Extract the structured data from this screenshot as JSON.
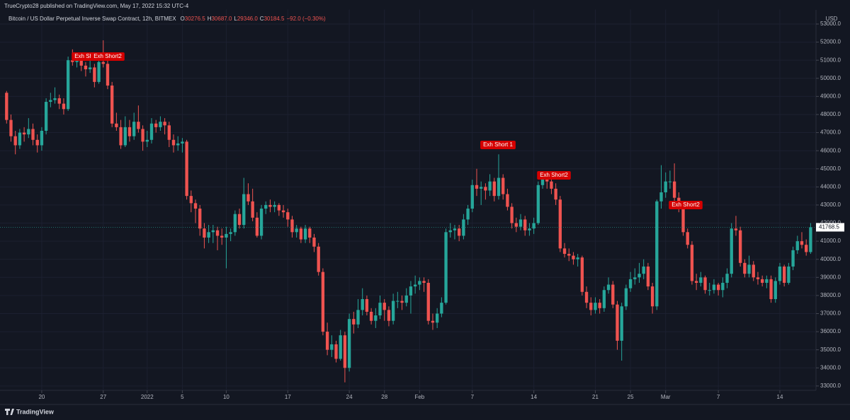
{
  "header": "TrueCrypto28 published on TradingView.com, May 17, 2022 15:32 UTC-4",
  "footer": "TradingView",
  "chart_data": {
    "type": "candlestick",
    "title": "Bitcoin / US Dollar Perpetual Inverse Swap Contract, 12h, BITMEX",
    "legend_values": [
      {
        "label": "O",
        "value": "30276.5"
      },
      {
        "label": "H",
        "value": "30687.0"
      },
      {
        "label": "L",
        "value": "29346.0"
      },
      {
        "label": "C",
        "value": "30184.5"
      }
    ],
    "change": "−92.0 (−0.30%)",
    "y_axis_label": "USD",
    "up_color": "#26a69a",
    "down_color": "#ef5350",
    "grid": true,
    "annotations": [
      "Exh Short2",
      "Exh Short2",
      "Exh Short 1",
      "Exh Short2",
      "Exh Short2"
    ],
    "xlim": [
      -1.5,
      184
    ],
    "xticks": [
      {
        "value": 8,
        "label": "20"
      },
      {
        "value": 22,
        "label": "27"
      },
      {
        "value": 32,
        "label": "2022"
      },
      {
        "value": 40,
        "label": "5"
      },
      {
        "value": 50,
        "label": "10"
      },
      {
        "value": 64,
        "label": "17"
      },
      {
        "value": 78,
        "label": "24"
      },
      {
        "value": 86,
        "label": "28"
      },
      {
        "value": 94,
        "label": "Feb"
      },
      {
        "value": 106,
        "label": "7"
      },
      {
        "value": 120,
        "label": "14"
      },
      {
        "value": 134,
        "label": "21"
      },
      {
        "value": 142,
        "label": "25"
      },
      {
        "value": 150,
        "label": "Mar"
      },
      {
        "value": 162,
        "label": "7"
      },
      {
        "value": 176,
        "label": "14"
      }
    ],
    "ylim": [
      32800,
      53800
    ],
    "yticks": [
      {
        "value": 33000,
        "label": "33000.0"
      },
      {
        "value": 34000,
        "label": "34000.0"
      },
      {
        "value": 35000,
        "label": "35000.0"
      },
      {
        "value": 36000,
        "label": "36000.0"
      },
      {
        "value": 37000,
        "label": "37000.0"
      },
      {
        "value": 38000,
        "label": "38000.0"
      },
      {
        "value": 39000,
        "label": "39000.0"
      },
      {
        "value": 40000,
        "label": "40000.0"
      },
      {
        "value": 41000,
        "label": "41000.0"
      },
      {
        "value": 42000,
        "label": "42000.0"
      },
      {
        "value": 43000,
        "label": "43000.0"
      },
      {
        "value": 44000,
        "label": "44000.0"
      },
      {
        "value": 45000,
        "label": "45000.0"
      },
      {
        "value": 46000,
        "label": "46000.0"
      },
      {
        "value": 47000,
        "label": "47000.0"
      },
      {
        "value": 48000,
        "label": "48000.0"
      },
      {
        "value": 49000,
        "label": "49000.0"
      },
      {
        "value": 50000,
        "label": "50000.0"
      },
      {
        "value": 51000,
        "label": "51000.0"
      },
      {
        "value": 52000,
        "label": "52000.0"
      },
      {
        "value": 53000,
        "label": "53000.0"
      }
    ],
    "ohlc": [
      [
        49200,
        49300,
        47500,
        47700
      ],
      [
        47700,
        48000,
        46500,
        46800
      ],
      [
        46800,
        47100,
        45800,
        46300
      ],
      [
        46300,
        47200,
        46100,
        47000
      ],
      [
        47000,
        47300,
        46500,
        46900
      ],
      [
        46900,
        47800,
        46700,
        47200
      ],
      [
        47200,
        47500,
        46300,
        46600
      ],
      [
        46600,
        46900,
        45900,
        46300
      ],
      [
        46300,
        47300,
        46000,
        47100
      ],
      [
        47100,
        48900,
        46900,
        48700
      ],
      [
        48700,
        49200,
        48400,
        48800
      ],
      [
        48800,
        49500,
        48600,
        48900
      ],
      [
        48900,
        49100,
        48300,
        48600
      ],
      [
        48600,
        48900,
        48000,
        48300
      ],
      [
        48300,
        51200,
        48200,
        51000
      ],
      [
        51000,
        51600,
        50700,
        50900
      ],
      [
        50900,
        51400,
        50600,
        51000
      ],
      [
        51000,
        51300,
        50400,
        50700
      ],
      [
        50700,
        50900,
        50100,
        50500
      ],
      [
        50500,
        51200,
        50300,
        50600
      ],
      [
        50600,
        50800,
        49500,
        49800
      ],
      [
        49800,
        51300,
        49700,
        50900
      ],
      [
        50900,
        52100,
        50600,
        50800
      ],
      [
        50800,
        51000,
        49400,
        49600
      ],
      [
        49600,
        49800,
        47300,
        47500
      ],
      [
        47500,
        48100,
        47100,
        47300
      ],
      [
        47300,
        47700,
        46100,
        46300
      ],
      [
        46300,
        47900,
        46200,
        47300
      ],
      [
        47300,
        47700,
        46500,
        46800
      ],
      [
        46800,
        48100,
        46600,
        47600
      ],
      [
        47600,
        48500,
        47000,
        47200
      ],
      [
        47200,
        47400,
        46000,
        46500
      ],
      [
        46500,
        47100,
        46200,
        46600
      ],
      [
        46600,
        47800,
        46400,
        47500
      ],
      [
        47500,
        47700,
        47000,
        47300
      ],
      [
        47300,
        47900,
        47100,
        47600
      ],
      [
        47600,
        47800,
        46900,
        47400
      ],
      [
        47400,
        47600,
        46200,
        46600
      ],
      [
        46600,
        46900,
        45900,
        46300
      ],
      [
        46300,
        46800,
        46000,
        46400
      ],
      [
        46400,
        46700,
        45900,
        46500
      ],
      [
        46500,
        46600,
        43300,
        43500
      ],
      [
        43500,
        43800,
        42600,
        43100
      ],
      [
        43100,
        43300,
        42000,
        42800
      ],
      [
        42800,
        43000,
        41300,
        41700
      ],
      [
        41700,
        42000,
        40600,
        41200
      ],
      [
        41200,
        41900,
        40900,
        41500
      ],
      [
        41500,
        41900,
        40900,
        41600
      ],
      [
        41600,
        41800,
        40500,
        41300
      ],
      [
        41300,
        41700,
        40800,
        41200
      ],
      [
        41200,
        41800,
        39500,
        41400
      ],
      [
        41400,
        41700,
        41000,
        41500
      ],
      [
        41500,
        42700,
        41300,
        42500
      ],
      [
        42500,
        42800,
        41700,
        41900
      ],
      [
        41900,
        44500,
        41700,
        43600
      ],
      [
        43600,
        44200,
        43000,
        43200
      ],
      [
        43200,
        43900,
        42100,
        42300
      ],
      [
        42300,
        42600,
        41200,
        41300
      ],
      [
        41300,
        43000,
        41100,
        42800
      ],
      [
        42800,
        43200,
        42500,
        43000
      ],
      [
        43000,
        43300,
        42600,
        42900
      ],
      [
        42900,
        43200,
        42600,
        43000
      ],
      [
        43000,
        43100,
        42400,
        42700
      ],
      [
        42700,
        43000,
        42300,
        42600
      ],
      [
        42600,
        42800,
        41800,
        42200
      ],
      [
        42200,
        42400,
        41200,
        41500
      ],
      [
        41500,
        41900,
        41200,
        41700
      ],
      [
        41700,
        41800,
        40900,
        41100
      ],
      [
        41100,
        41900,
        40900,
        41700
      ],
      [
        41700,
        41800,
        40900,
        41200
      ],
      [
        41200,
        41400,
        40400,
        40700
      ],
      [
        40700,
        40900,
        39100,
        39300
      ],
      [
        39300,
        39500,
        35800,
        36000
      ],
      [
        36000,
        36500,
        34700,
        35000
      ],
      [
        35000,
        35800,
        34600,
        35300
      ],
      [
        35300,
        35500,
        34300,
        34500
      ],
      [
        34500,
        36100,
        34400,
        35800
      ],
      [
        35800,
        36000,
        33200,
        34000
      ],
      [
        34000,
        37000,
        33800,
        36700
      ],
      [
        36700,
        37100,
        35900,
        36400
      ],
      [
        36400,
        37800,
        36200,
        37200
      ],
      [
        37200,
        38400,
        36900,
        37800
      ],
      [
        37800,
        38000,
        36900,
        37100
      ],
      [
        37100,
        37300,
        36400,
        36600
      ],
      [
        36600,
        37300,
        36200,
        36900
      ],
      [
        36900,
        38000,
        36700,
        37600
      ],
      [
        37600,
        37800,
        36600,
        37200
      ],
      [
        37200,
        37400,
        36300,
        36600
      ],
      [
        36600,
        38100,
        36400,
        37700
      ],
      [
        37700,
        38200,
        37300,
        37700
      ],
      [
        37700,
        38000,
        37200,
        37600
      ],
      [
        37600,
        38400,
        37400,
        38000
      ],
      [
        38000,
        38800,
        37000,
        38500
      ],
      [
        38500,
        39100,
        38100,
        38600
      ],
      [
        38600,
        39000,
        38300,
        38800
      ],
      [
        38800,
        39000,
        38200,
        38700
      ],
      [
        38700,
        38900,
        36400,
        36600
      ],
      [
        36600,
        37000,
        36100,
        36500
      ],
      [
        36500,
        37300,
        36200,
        37000
      ],
      [
        37000,
        37900,
        36800,
        37600
      ],
      [
        37600,
        41700,
        37500,
        41500
      ],
      [
        41500,
        42000,
        41200,
        41600
      ],
      [
        41600,
        41900,
        41100,
        41700
      ],
      [
        41700,
        41900,
        41000,
        41300
      ],
      [
        41300,
        42500,
        41100,
        42200
      ],
      [
        42200,
        43000,
        41900,
        42800
      ],
      [
        42800,
        44400,
        42600,
        44100
      ],
      [
        44100,
        45000,
        43500,
        43900
      ],
      [
        43900,
        44300,
        43000,
        44000
      ],
      [
        44000,
        44200,
        43300,
        43800
      ],
      [
        43800,
        44700,
        43500,
        44300
      ],
      [
        44300,
        44500,
        43200,
        43500
      ],
      [
        43500,
        45800,
        43300,
        44500
      ],
      [
        44500,
        44700,
        43300,
        43600
      ],
      [
        43600,
        43900,
        42700,
        42900
      ],
      [
        42900,
        43100,
        41700,
        42000
      ],
      [
        42000,
        42300,
        41500,
        41800
      ],
      [
        41800,
        42500,
        41600,
        42200
      ],
      [
        42200,
        42400,
        41300,
        41600
      ],
      [
        41600,
        42000,
        41300,
        41700
      ],
      [
        41700,
        42300,
        41400,
        42000
      ],
      [
        42000,
        44300,
        41900,
        44100
      ],
      [
        44100,
        44800,
        43900,
        44500
      ],
      [
        44500,
        44700,
        43900,
        44300
      ],
      [
        44300,
        44500,
        43600,
        43900
      ],
      [
        43900,
        44200,
        43000,
        43300
      ],
      [
        43300,
        43500,
        40400,
        40600
      ],
      [
        40600,
        40900,
        40100,
        40300
      ],
      [
        40300,
        40600,
        39900,
        40200
      ],
      [
        40200,
        40400,
        39700,
        40000
      ],
      [
        40000,
        40300,
        39600,
        40100
      ],
      [
        40100,
        40200,
        38000,
        38200
      ],
      [
        38200,
        38500,
        37300,
        37600
      ],
      [
        37600,
        37900,
        36900,
        37200
      ],
      [
        37200,
        37900,
        37000,
        37600
      ],
      [
        37600,
        37800,
        37000,
        37300
      ],
      [
        37300,
        38500,
        37100,
        38300
      ],
      [
        38300,
        39000,
        38100,
        38600
      ],
      [
        38600,
        38800,
        37300,
        37500
      ],
      [
        37500,
        37700,
        35000,
        35500
      ],
      [
        35500,
        37600,
        34400,
        37400
      ],
      [
        37400,
        38600,
        37200,
        38400
      ],
      [
        38400,
        39300,
        38200,
        38900
      ],
      [
        38900,
        39500,
        38600,
        39000
      ],
      [
        39000,
        39800,
        38700,
        39200
      ],
      [
        39200,
        40000,
        38900,
        39600
      ],
      [
        39600,
        39800,
        38300,
        38500
      ],
      [
        38500,
        38700,
        37000,
        37400
      ],
      [
        37400,
        43300,
        37200,
        43200
      ],
      [
        43200,
        45200,
        42800,
        43700
      ],
      [
        43700,
        44800,
        43400,
        44300
      ],
      [
        44300,
        44900,
        43900,
        44300
      ],
      [
        44300,
        45300,
        43200,
        43400
      ],
      [
        43400,
        43700,
        42600,
        42900
      ],
      [
        42900,
        43100,
        41300,
        41500
      ],
      [
        41500,
        41700,
        40600,
        40800
      ],
      [
        40800,
        41000,
        38600,
        38800
      ],
      [
        38800,
        39200,
        38300,
        38700
      ],
      [
        38700,
        39300,
        38500,
        39000
      ],
      [
        39000,
        39100,
        38100,
        38300
      ],
      [
        38300,
        38700,
        38000,
        38300
      ],
      [
        38300,
        38900,
        38100,
        38600
      ],
      [
        38600,
        38700,
        38000,
        38300
      ],
      [
        38300,
        39000,
        37900,
        38700
      ],
      [
        38700,
        39500,
        38400,
        39200
      ],
      [
        39200,
        42000,
        39000,
        41700
      ],
      [
        41700,
        42400,
        41300,
        41600
      ],
      [
        41600,
        41800,
        39600,
        39800
      ],
      [
        39800,
        40000,
        39000,
        39200
      ],
      [
        39200,
        40200,
        39000,
        39700
      ],
      [
        39700,
        39900,
        38800,
        39000
      ],
      [
        39000,
        39300,
        38600,
        38900
      ],
      [
        38900,
        39100,
        38500,
        38700
      ],
      [
        38700,
        39100,
        38400,
        38900
      ],
      [
        38900,
        39100,
        37600,
        37800
      ],
      [
        37800,
        39000,
        37600,
        38800
      ],
      [
        38800,
        39800,
        38600,
        39600
      ],
      [
        39600,
        39700,
        38500,
        38700
      ],
      [
        38700,
        39800,
        38600,
        39600
      ],
      [
        39600,
        40700,
        39400,
        40500
      ],
      [
        40500,
        41300,
        40300,
        41000
      ],
      [
        41000,
        41500,
        40600,
        40800
      ],
      [
        40800,
        41100,
        40200,
        40400
      ],
      [
        40400,
        42000,
        40300,
        41768.5
      ]
    ]
  }
}
